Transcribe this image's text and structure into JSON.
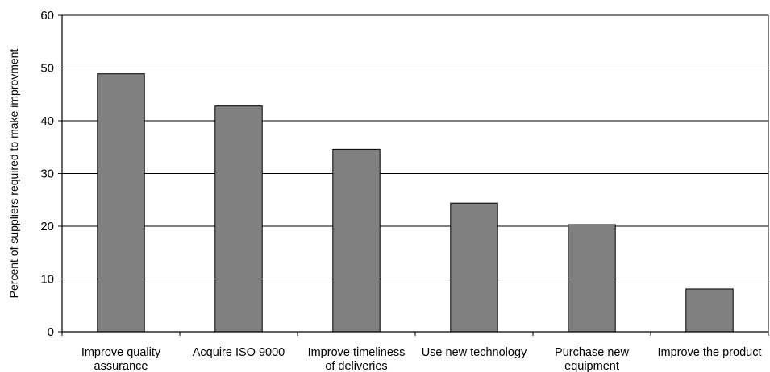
{
  "chart_data": {
    "type": "bar",
    "title": "",
    "xlabel": "",
    "ylabel": "Percent of suppliers required to make improvment",
    "categories": [
      [
        "Improve quality",
        "assurance"
      ],
      [
        "Acquire ISO 9000"
      ],
      [
        "Improve timeliness",
        "of deliveries"
      ],
      [
        "Use new technology"
      ],
      [
        "Purchase new",
        "equipment"
      ],
      [
        "Improve the product"
      ]
    ],
    "values": [
      48.9,
      42.8,
      34.6,
      24.4,
      20.3,
      8.1
    ],
    "ylim": [
      0,
      60
    ],
    "yticks": [
      0,
      10,
      20,
      30,
      40,
      50,
      60
    ],
    "grid": true,
    "legend": "none",
    "colors": {
      "bar_fill": "#808080",
      "bar_stroke": "#000000",
      "grid": "#000000",
      "axis": "#000000"
    }
  }
}
